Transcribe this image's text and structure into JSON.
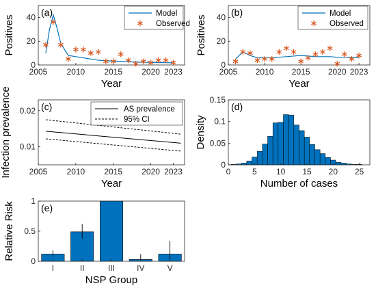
{
  "chart_data": [
    {
      "panel": "(a)",
      "type": "line",
      "xlabel": "Year",
      "ylabel": "Positives",
      "xlim": [
        2005,
        2024.5
      ],
      "ylim": [
        0,
        50
      ],
      "xticks": [
        2005,
        2010,
        2015,
        2020,
        2023
      ],
      "yticks": [
        0,
        20,
        40
      ],
      "legend": {
        "placement": "top-right",
        "entries": [
          "Model",
          "Observed"
        ]
      },
      "series": [
        {
          "name": "Model",
          "style": "line",
          "x": [
            2006,
            2006.5,
            2007,
            2007.5,
            2008,
            2009,
            2010,
            2011,
            2012,
            2013,
            2014,
            2015,
            2016,
            2017,
            2018,
            2019,
            2020,
            2021,
            2022,
            2023
          ],
          "y": [
            10,
            30,
            42,
            31,
            18,
            8,
            7,
            6,
            5,
            4,
            3.5,
            3.3,
            3,
            2.7,
            2.5,
            2.3,
            2.2,
            2,
            1.9,
            1.8
          ]
        },
        {
          "name": "Observed",
          "style": "markers",
          "x": [
            2006,
            2007,
            2008,
            2009,
            2010,
            2011,
            2012,
            2013,
            2014,
            2015,
            2016,
            2017,
            2018,
            2019,
            2020,
            2021,
            2022,
            2023
          ],
          "y": [
            17,
            36,
            17,
            5,
            13,
            13,
            10,
            11,
            3,
            3,
            9,
            4,
            1,
            3,
            2,
            4,
            4,
            2
          ]
        }
      ]
    },
    {
      "panel": "(b)",
      "type": "line",
      "xlabel": "Year",
      "ylabel": "Positives",
      "xlim": [
        2005,
        2024.5
      ],
      "ylim": [
        0,
        50
      ],
      "xticks": [
        2005,
        2010,
        2015,
        2020,
        2023
      ],
      "yticks": [
        0,
        20,
        40
      ],
      "legend": {
        "placement": "top-right",
        "entries": [
          "Model",
          "Observed"
        ]
      },
      "series": [
        {
          "name": "Model",
          "style": "line",
          "x": [
            2006,
            2007,
            2008,
            2009,
            2010,
            2011,
            2012,
            2013,
            2014,
            2015,
            2016,
            2017,
            2018,
            2019,
            2020,
            2021,
            2022,
            2023
          ],
          "y": [
            5,
            11,
            8,
            6,
            6,
            6,
            6.5,
            7,
            7.5,
            8,
            7.5,
            7,
            7,
            7,
            6.5,
            6.5,
            6.5,
            6
          ]
        },
        {
          "name": "Observed",
          "style": "markers",
          "x": [
            2006,
            2007,
            2008,
            2009,
            2010,
            2011,
            2012,
            2013,
            2014,
            2015,
            2016,
            2017,
            2018,
            2019,
            2020,
            2021,
            2022,
            2023
          ],
          "y": [
            3,
            11,
            10,
            4,
            5,
            5,
            11,
            14,
            11,
            3,
            6,
            9,
            11,
            14,
            1,
            9,
            5,
            8
          ]
        }
      ]
    },
    {
      "panel": "(c)",
      "type": "line",
      "xlabel": "Year",
      "ylabel": "Infection prevalence",
      "xlim": [
        2005,
        2024.5
      ],
      "ylim": [
        0.005,
        0.023
      ],
      "xticks": [
        2005,
        2010,
        2015,
        2020,
        2023
      ],
      "yticks": [
        0.01,
        0.02
      ],
      "ytick_labels": [
        "0.01",
        "0.02"
      ],
      "legend": {
        "placement": "top-right",
        "entries": [
          "AS prevalence",
          "95% CI"
        ]
      },
      "series": [
        {
          "name": "AS prevalence",
          "style": "solid",
          "x": [
            2006,
            2024
          ],
          "y": [
            0.0143,
            0.011
          ]
        },
        {
          "name": "95% CI",
          "style": "dashed",
          "x": [
            2006,
            2024
          ],
          "y": [
            0.0175,
            0.0135
          ]
        },
        {
          "style": "dashed",
          "x": [
            2006,
            2024
          ],
          "y": [
            0.0122,
            0.0088
          ]
        }
      ]
    },
    {
      "panel": "(d)",
      "type": "bar",
      "xlabel": "Number of cases",
      "ylabel": "Density",
      "xlim": [
        0,
        27
      ],
      "ylim": [
        0,
        0.15
      ],
      "xticks": [
        0,
        5,
        10,
        15,
        20,
        25
      ],
      "yticks": [
        0,
        0.05,
        0.1,
        0.15
      ],
      "ytick_labels": [
        "0",
        "0.05",
        "0.1",
        "0.15"
      ],
      "bin_centers": [
        1,
        2,
        3,
        4,
        5,
        6,
        7,
        8,
        9,
        10,
        11,
        12,
        13,
        14,
        15,
        16,
        17,
        18,
        19,
        20,
        21,
        22,
        23,
        24,
        25
      ],
      "values": [
        0.001,
        0.002,
        0.004,
        0.009,
        0.018,
        0.031,
        0.048,
        0.066,
        0.097,
        0.098,
        0.116,
        0.115,
        0.092,
        0.079,
        0.064,
        0.047,
        0.035,
        0.026,
        0.017,
        0.011,
        0.006,
        0.004,
        0.002,
        0.001,
        0.001
      ]
    },
    {
      "panel": "(e)",
      "type": "bar",
      "xlabel": "NSP Group",
      "ylabel": "Relative Risk",
      "ylim": [
        0,
        1
      ],
      "yticks": [
        0,
        0.5,
        1
      ],
      "ytick_labels": [
        "0",
        "0.5",
        "1"
      ],
      "categories": [
        "I",
        "II",
        "III",
        "IV",
        "V"
      ],
      "values": [
        0.12,
        0.49,
        1.0,
        0.03,
        0.12
      ],
      "err_low": [
        0.08,
        0.38,
        1.0,
        0.0,
        0.0
      ],
      "err_high": [
        0.18,
        0.62,
        1.0,
        0.12,
        0.34
      ]
    }
  ],
  "colors": {
    "model_line": "#0072BD",
    "observed_marker": "#D95319",
    "bar_fill": "#0072BD",
    "axis": "#262626"
  }
}
